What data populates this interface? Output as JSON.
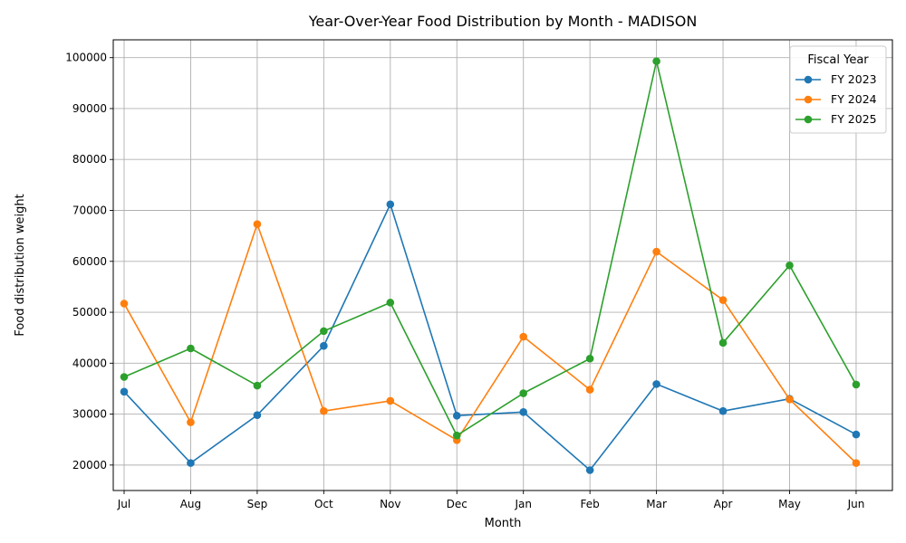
{
  "chart_data": {
    "type": "line",
    "title": "Year-Over-Year Food Distribution by Month - MADISON",
    "xlabel": "Month",
    "ylabel": "Food distribution weight",
    "categories": [
      "Jul",
      "Aug",
      "Sep",
      "Oct",
      "Nov",
      "Dec",
      "Jan",
      "Feb",
      "Mar",
      "Apr",
      "May",
      "Jun"
    ],
    "ylim": [
      15000,
      103500
    ],
    "yticks": [
      20000,
      30000,
      40000,
      50000,
      60000,
      70000,
      80000,
      90000,
      100000
    ],
    "grid": true,
    "legend": {
      "title": "Fiscal Year",
      "placement": "top-right"
    },
    "series": [
      {
        "name": "FY 2023",
        "color": "#1f77b4",
        "values": [
          34400,
          20400,
          29800,
          43400,
          71200,
          29700,
          30400,
          19000,
          35900,
          30600,
          33000,
          26000
        ]
      },
      {
        "name": "FY 2024",
        "color": "#ff7f0e",
        "values": [
          51700,
          28400,
          67300,
          30600,
          32600,
          24900,
          45200,
          34800,
          61900,
          52400,
          32900,
          20400
        ]
      },
      {
        "name": "FY 2025",
        "color": "#2ca02c",
        "values": [
          37300,
          42900,
          35600,
          46300,
          51900,
          25800,
          34100,
          40900,
          99300,
          44000,
          59200,
          35800
        ]
      }
    ]
  }
}
